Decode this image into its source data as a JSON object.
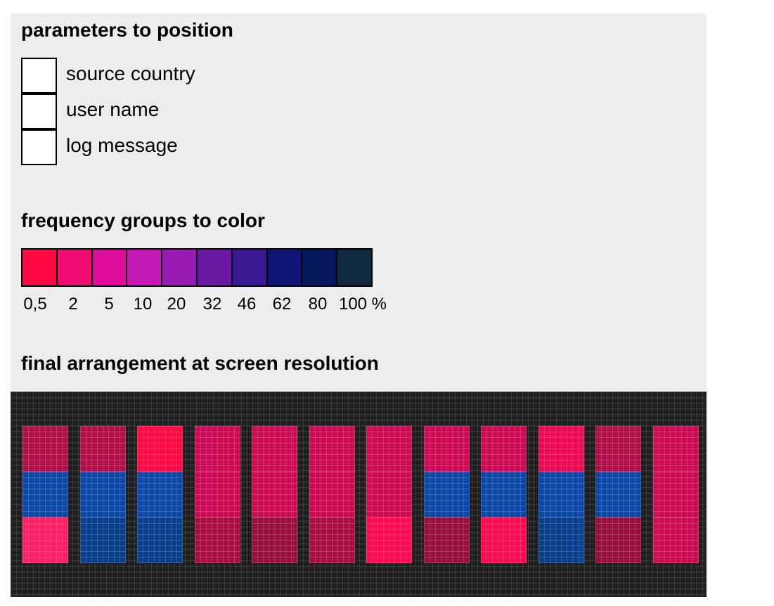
{
  "sections": {
    "position_title": "parameters to position",
    "color_title": "frequency groups to color",
    "arrangement_title": "final arrangement at screen resolution"
  },
  "parameters": [
    {
      "label": "source country",
      "checked": false
    },
    {
      "label": "user name",
      "checked": false
    },
    {
      "label": "log message",
      "checked": false
    }
  ],
  "frequency_legend": {
    "colors": [
      "#ff0a45",
      "#ee0a70",
      "#dd0a9a",
      "#c31ab4",
      "#9a1ab4",
      "#6a1aa2",
      "#3a1a92",
      "#0f1475",
      "#05185e",
      "#0f2a3e"
    ],
    "ticks": [
      "0,5",
      "2",
      "5",
      "10",
      "20",
      "32",
      "46",
      "62",
      "80",
      "100 %"
    ]
  },
  "arrangement": {
    "background": "#1f1f1f",
    "columns": [
      [
        "#b0114a",
        "#0c48a8",
        "#ff1f66"
      ],
      [
        "#b0114a",
        "#0c48a8",
        "#0a4090"
      ],
      [
        "#ff0a45",
        "#0c48a8",
        "#0a4090"
      ],
      [
        "#cc0c57",
        "#cc0c57",
        "#a90f42"
      ],
      [
        "#cc0c57",
        "#cc0c57",
        "#981140"
      ],
      [
        "#cc0c57",
        "#cc0c57",
        "#a90f42"
      ],
      [
        "#cc0c57",
        "#cc0c57",
        "#ff0a50"
      ],
      [
        "#cc0c57",
        "#0c48a8",
        "#981140"
      ],
      [
        "#cc0c57",
        "#0c48a8",
        "#ff0a50"
      ],
      [
        "#ee0a50",
        "#0c48a8",
        "#0a4090"
      ],
      [
        "#b0114a",
        "#0c48a8",
        "#981140"
      ],
      [
        "#cc0c57",
        "#cc0c57",
        "#cc0c57"
      ]
    ]
  }
}
